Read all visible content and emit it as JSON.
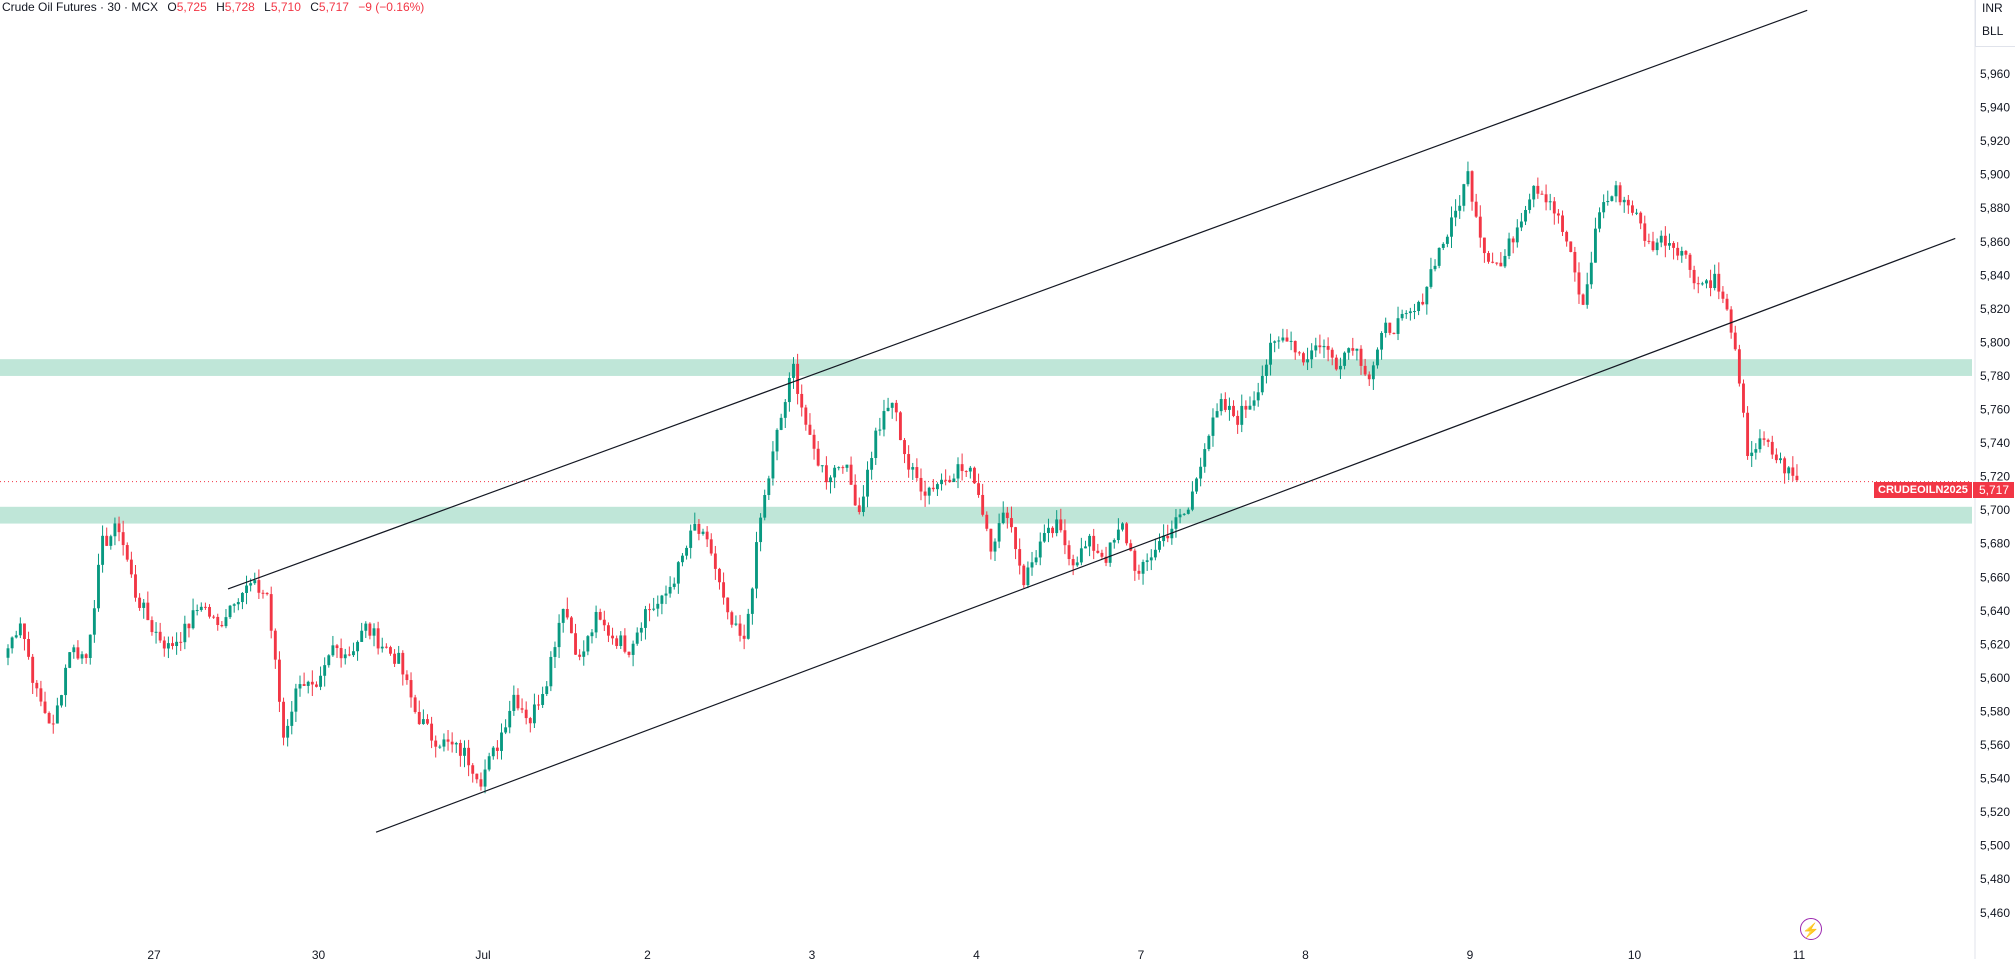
{
  "legend": {
    "symbol": "Crude Oil Futures · 30 · MCX",
    "open_label": "O",
    "open": "5,725",
    "high_label": "H",
    "high": "5,728",
    "low_label": "L",
    "low": "5,710",
    "close_label": "C",
    "close": "5,717",
    "change": "−9 (−0.16%)"
  },
  "currency": [
    "INR",
    "BLL"
  ],
  "price_line": {
    "label": "CRUDEOILN2025",
    "value": "5,717",
    "price": 5717
  },
  "colors": {
    "up": "#089981",
    "down": "#f23645",
    "zone": "#bfe6d8",
    "trend": "#131722"
  },
  "chart_data": {
    "type": "candlestick",
    "y_ticks": [
      5460,
      5480,
      5500,
      5520,
      5540,
      5560,
      5580,
      5600,
      5620,
      5640,
      5660,
      5680,
      5700,
      5720,
      5740,
      5760,
      5780,
      5800,
      5820,
      5840,
      5860,
      5880,
      5900,
      5920,
      5940,
      5960
    ],
    "y_tick_labels": [
      "5,460",
      "5,480",
      "5,500",
      "5,520",
      "5,540",
      "5,560",
      "5,580",
      "5,600",
      "5,620",
      "5,640",
      "5,660",
      "5,680",
      "5,700",
      "5,720",
      "5,740",
      "5,760",
      "5,780",
      "5,800",
      "5,820",
      "5,840",
      "5,860",
      "5,880",
      "5,900",
      "5,920",
      "5,940",
      "5,960"
    ],
    "x_ticks": [
      {
        "label": "27",
        "bar": 9
      },
      {
        "label": "30",
        "bar": 19
      },
      {
        "label": "Jul",
        "bar": 29
      },
      {
        "label": "2",
        "bar": 39
      },
      {
        "label": "3",
        "bar": 49
      },
      {
        "label": "4",
        "bar": 59
      },
      {
        "label": "7",
        "bar": 69
      },
      {
        "label": "8",
        "bar": 79
      },
      {
        "label": "9",
        "bar": 89
      },
      {
        "label": "10",
        "bar": 99
      },
      {
        "label": "11",
        "bar": 109
      }
    ],
    "ylim": [
      5450,
      5990
    ],
    "support_zones": [
      [
        5780,
        5790
      ],
      [
        5692,
        5702
      ]
    ],
    "trendlines": [
      {
        "from": [
          13.5,
          5653
        ],
        "to": [
          109.5,
          5998
        ]
      },
      {
        "from": [
          22.5,
          5508
        ],
        "to": [
          118.5,
          5862
        ]
      }
    ],
    "keypoints": [
      [
        0,
        5612
      ],
      [
        1,
        5635
      ],
      [
        2,
        5590
      ],
      [
        3,
        5570
      ],
      [
        4,
        5618
      ],
      [
        5,
        5612
      ],
      [
        6,
        5680
      ],
      [
        7,
        5690
      ],
      [
        8,
        5650
      ],
      [
        9,
        5630
      ],
      [
        10,
        5618
      ],
      [
        11,
        5628
      ],
      [
        12,
        5645
      ],
      [
        13,
        5630
      ],
      [
        14,
        5648
      ],
      [
        15,
        5655
      ],
      [
        16,
        5650
      ],
      [
        17,
        5565
      ],
      [
        18,
        5600
      ],
      [
        19,
        5590
      ],
      [
        20,
        5618
      ],
      [
        21,
        5615
      ],
      [
        22,
        5630
      ],
      [
        23,
        5620
      ],
      [
        24,
        5610
      ],
      [
        25,
        5580
      ],
      [
        26,
        5565
      ],
      [
        27,
        5560
      ],
      [
        28,
        5555
      ],
      [
        29,
        5540
      ],
      [
        30,
        5560
      ],
      [
        31,
        5590
      ],
      [
        32,
        5575
      ],
      [
        33,
        5600
      ],
      [
        34,
        5645
      ],
      [
        35,
        5610
      ],
      [
        36,
        5635
      ],
      [
        37,
        5625
      ],
      [
        38,
        5618
      ],
      [
        39,
        5640
      ],
      [
        40,
        5645
      ],
      [
        41,
        5665
      ],
      [
        42,
        5690
      ],
      [
        43,
        5675
      ],
      [
        44,
        5635
      ],
      [
        45,
        5620
      ],
      [
        46,
        5695
      ],
      [
        47,
        5745
      ],
      [
        48,
        5785
      ],
      [
        49,
        5740
      ],
      [
        50,
        5720
      ],
      [
        51,
        5730
      ],
      [
        52,
        5700
      ],
      [
        53,
        5745
      ],
      [
        54,
        5765
      ],
      [
        55,
        5725
      ],
      [
        56,
        5712
      ],
      [
        57,
        5718
      ],
      [
        58,
        5725
      ],
      [
        59,
        5720
      ],
      [
        60,
        5680
      ],
      [
        61,
        5700
      ],
      [
        62,
        5658
      ],
      [
        63,
        5680
      ],
      [
        64,
        5690
      ],
      [
        65,
        5670
      ],
      [
        66,
        5680
      ],
      [
        67,
        5672
      ],
      [
        68,
        5690
      ],
      [
        69,
        5660
      ],
      [
        70,
        5678
      ],
      [
        71,
        5690
      ],
      [
        72,
        5700
      ],
      [
        73,
        5740
      ],
      [
        74,
        5762
      ],
      [
        75,
        5755
      ],
      [
        76,
        5768
      ],
      [
        77,
        5795
      ],
      [
        78,
        5805
      ],
      [
        79,
        5790
      ],
      [
        80,
        5800
      ],
      [
        81,
        5788
      ],
      [
        82,
        5800
      ],
      [
        83,
        5780
      ],
      [
        84,
        5808
      ],
      [
        85,
        5812
      ],
      [
        86,
        5820
      ],
      [
        87,
        5850
      ],
      [
        88,
        5870
      ],
      [
        89,
        5900
      ],
      [
        90,
        5855
      ],
      [
        91,
        5845
      ],
      [
        92,
        5870
      ],
      [
        93,
        5895
      ],
      [
        94,
        5885
      ],
      [
        95,
        5860
      ],
      [
        96,
        5820
      ],
      [
        97,
        5880
      ],
      [
        98,
        5890
      ],
      [
        99,
        5880
      ],
      [
        100,
        5858
      ],
      [
        101,
        5862
      ],
      [
        102,
        5855
      ],
      [
        103,
        5835
      ],
      [
        104,
        5838
      ],
      [
        105,
        5810
      ],
      [
        106,
        5735
      ],
      [
        107,
        5740
      ],
      [
        108,
        5728
      ],
      [
        109,
        5717
      ]
    ]
  }
}
